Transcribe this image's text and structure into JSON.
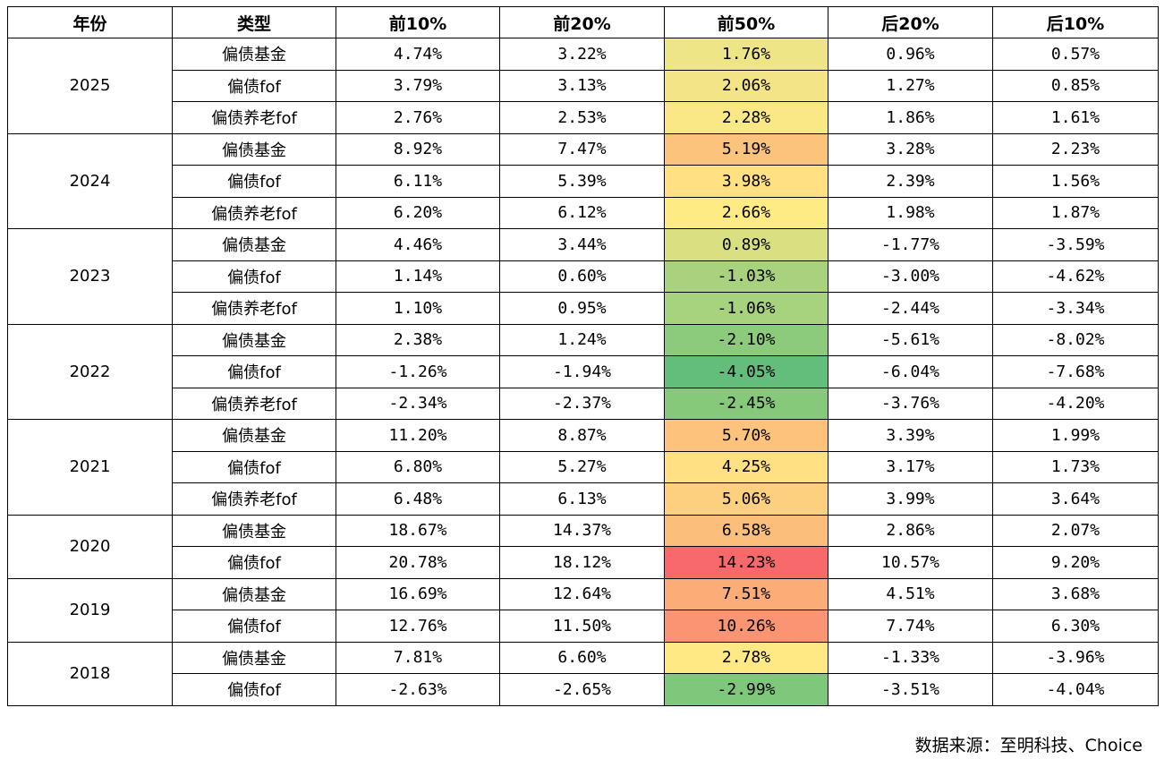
{
  "headers": [
    "年份",
    "类型",
    "前10%",
    "前20%",
    "前50%",
    "后20%",
    "后10%"
  ],
  "groups": [
    {
      "year": "2025",
      "rows": [
        {
          "type": "偏债基金",
          "values": [
            "4.74%",
            "3.22%",
            "1.76%",
            "0.96%",
            "0.57%"
          ],
          "color": "#eee587"
        },
        {
          "type": "偏债fof",
          "values": [
            "3.79%",
            "3.13%",
            "2.06%",
            "1.27%",
            "0.85%"
          ],
          "color": "#f3e586"
        },
        {
          "type": "偏债养老fof",
          "values": [
            "2.76%",
            "2.53%",
            "2.28%",
            "1.86%",
            "1.61%"
          ],
          "color": "#f9e885"
        }
      ]
    },
    {
      "year": "2024",
      "rows": [
        {
          "type": "偏债基金",
          "values": [
            "8.92%",
            "7.47%",
            "5.19%",
            "3.28%",
            "2.23%"
          ],
          "color": "#fcc37d"
        },
        {
          "type": "偏债fof",
          "values": [
            "6.11%",
            "5.39%",
            "3.98%",
            "2.39%",
            "1.56%"
          ],
          "color": "#ffe083"
        },
        {
          "type": "偏债养老fof",
          "values": [
            "6.20%",
            "6.12%",
            "2.66%",
            "1.98%",
            "1.87%"
          ],
          "color": "#feeb84"
        }
      ]
    },
    {
      "year": "2023",
      "rows": [
        {
          "type": "偏债基金",
          "values": [
            "4.46%",
            "3.44%",
            "0.89%",
            "-1.77%",
            "-3.59%"
          ],
          "color": "#d9e082"
        },
        {
          "type": "偏债fof",
          "values": [
            "1.14%",
            "0.60%",
            "-1.03%",
            "-3.00%",
            "-4.62%"
          ],
          "color": "#a8d27e"
        },
        {
          "type": "偏债养老fof",
          "values": [
            "1.10%",
            "0.95%",
            "-1.06%",
            "-2.44%",
            "-3.34%"
          ],
          "color": "#a7d27e"
        }
      ]
    },
    {
      "year": "2022",
      "rows": [
        {
          "type": "偏债基金",
          "values": [
            "2.38%",
            "1.24%",
            "-2.10%",
            "-5.61%",
            "-8.02%"
          ],
          "color": "#8ccb7b"
        },
        {
          "type": "偏债fof",
          "values": [
            "-1.26%",
            "-1.94%",
            "-4.05%",
            "-6.04%",
            "-7.68%"
          ],
          "color": "#63be7b"
        },
        {
          "type": "偏债养老fof",
          "values": [
            "-2.34%",
            "-2.37%",
            "-2.45%",
            "-3.76%",
            "-4.20%"
          ],
          "color": "#86c97b"
        }
      ]
    },
    {
      "year": "2021",
      "rows": [
        {
          "type": "偏债基金",
          "values": [
            "11.20%",
            "8.87%",
            "5.70%",
            "3.39%",
            "1.99%"
          ],
          "color": "#fdc37d"
        },
        {
          "type": "偏债fof",
          "values": [
            "6.80%",
            "5.27%",
            "4.25%",
            "3.17%",
            "1.73%"
          ],
          "color": "#ffe083"
        },
        {
          "type": "偏债养老fof",
          "values": [
            "6.48%",
            "6.13%",
            "5.06%",
            "3.99%",
            "3.64%"
          ],
          "color": "#fdd07f"
        }
      ]
    },
    {
      "year": "2020",
      "rows": [
        {
          "type": "偏债基金",
          "values": [
            "18.67%",
            "14.37%",
            "6.58%",
            "2.86%",
            "2.07%"
          ],
          "color": "#fcbf7b"
        },
        {
          "type": "偏债fof",
          "values": [
            "20.78%",
            "18.12%",
            "14.23%",
            "10.57%",
            "9.20%"
          ],
          "color": "#f8696b"
        }
      ]
    },
    {
      "year": "2019",
      "rows": [
        {
          "type": "偏债基金",
          "values": [
            "16.69%",
            "12.64%",
            "7.51%",
            "4.51%",
            "3.68%"
          ],
          "color": "#fcac77"
        },
        {
          "type": "偏债fof",
          "values": [
            "12.76%",
            "11.50%",
            "10.26%",
            "7.74%",
            "6.30%"
          ],
          "color": "#fa9473"
        }
      ]
    },
    {
      "year": "2018",
      "rows": [
        {
          "type": "偏债基金",
          "values": [
            "7.81%",
            "6.60%",
            "2.78%",
            "-1.33%",
            "-3.96%"
          ],
          "color": "#fee985"
        },
        {
          "type": "偏债fof",
          "values": [
            "-2.63%",
            "-2.65%",
            "-2.99%",
            "-3.51%",
            "-4.04%"
          ],
          "color": "#7fc77b"
        }
      ]
    }
  ],
  "source": "数据来源：至明科技、Choice"
}
